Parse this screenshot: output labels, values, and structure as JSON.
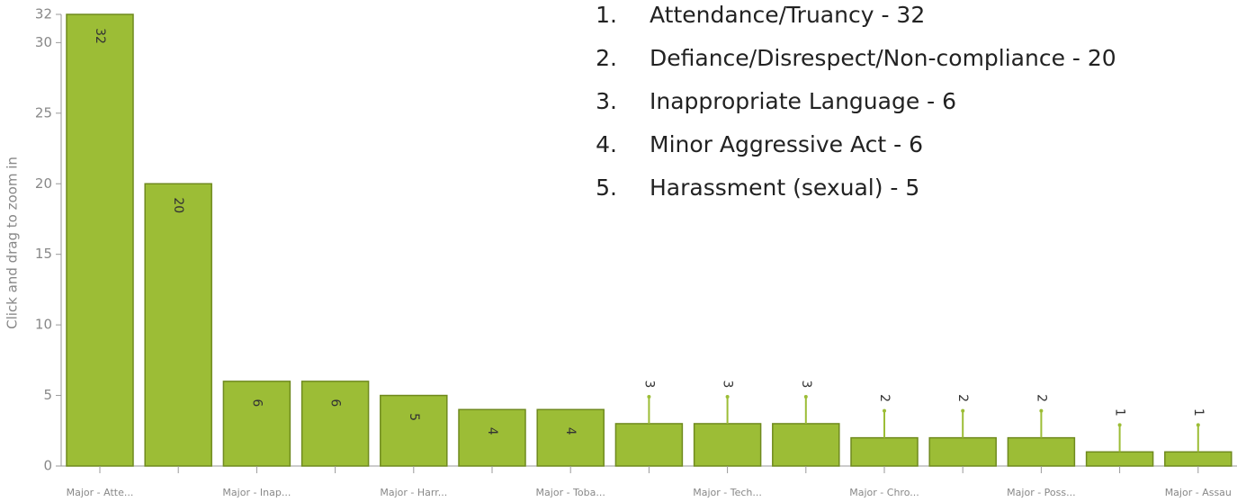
{
  "chart_data": {
    "type": "bar",
    "y_label": "Click and drag to zoom in",
    "categories": [
      "Major - Atte...",
      null,
      "Major - Inap...",
      null,
      "Major - Harr...",
      null,
      "Major - Toba...",
      null,
      "Major - Tech...",
      null,
      "Major - Chro...",
      null,
      "Major - Poss...",
      null,
      "Major - Assau"
    ],
    "values": [
      32,
      20,
      6,
      6,
      5,
      4,
      4,
      3,
      3,
      3,
      2,
      2,
      2,
      1,
      1
    ],
    "color": "#9cbd36",
    "ylim": [
      0,
      32
    ],
    "yticks": [
      0,
      5,
      10,
      15,
      20,
      25,
      30,
      32
    ],
    "annotations": [
      {
        "marker": "1.",
        "text": "Attendance/Truancy - 32"
      },
      {
        "marker": "2.",
        "text": "Defiance/Disrespect/Non-compliance - 20"
      },
      {
        "marker": "3.",
        "text": "Inappropriate Language - 6"
      },
      {
        "marker": "4.",
        "text": "Minor Aggressive Act - 6"
      },
      {
        "marker": "5.",
        "text": "Harassment (sexual) - 5"
      }
    ]
  }
}
